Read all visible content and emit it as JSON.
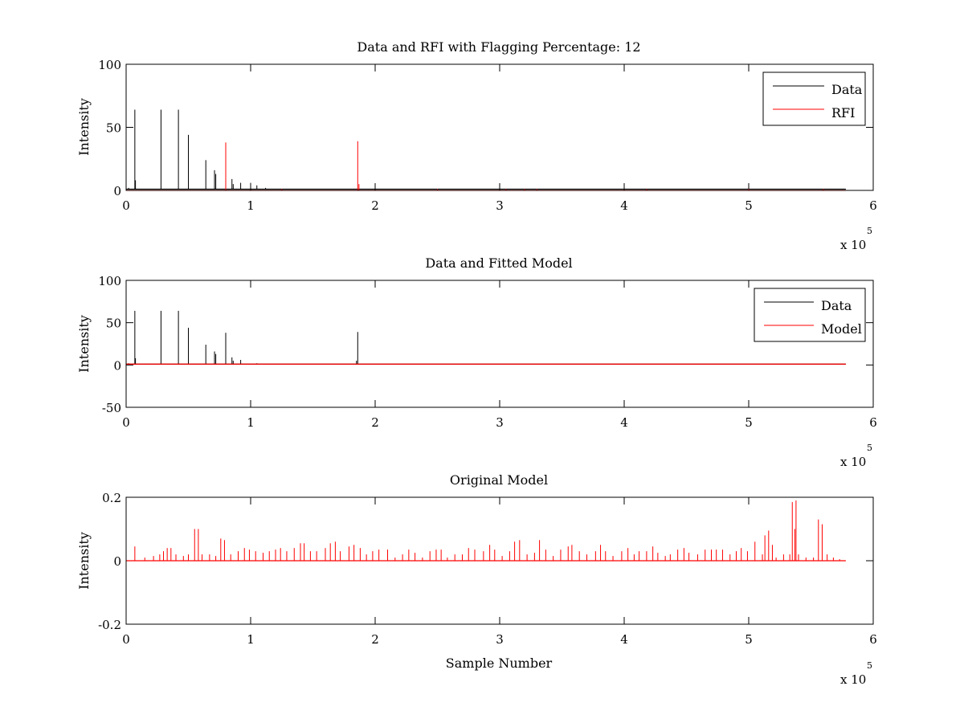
{
  "chart_data": [
    {
      "type": "line",
      "title": "Data and RFI with Flagging Percentage: 12",
      "xlabel": "",
      "ylabel": "Intensity",
      "xlim": [
        0,
        600000
      ],
      "ylim": [
        0,
        100
      ],
      "xticks": [
        0,
        1,
        2,
        3,
        4,
        5,
        6
      ],
      "xtick_labels": [
        "0",
        "1",
        "2",
        "3",
        "4",
        "5",
        "6"
      ],
      "x_multiplier_label": "x 10",
      "x_multiplier_exponent": "5",
      "yticks": [
        0,
        50,
        100
      ],
      "ytick_labels": [
        "0",
        "50",
        "100"
      ],
      "legend_position": "top-right",
      "series": [
        {
          "name": "Data",
          "color": "#000000",
          "spikes": [
            [
              2000,
              2
            ],
            [
              7000,
              64
            ],
            [
              7500,
              8
            ],
            [
              22000,
              1
            ],
            [
              28000,
              64
            ],
            [
              42000,
              64
            ],
            [
              50000,
              44
            ],
            [
              64000,
              24
            ],
            [
              71000,
              16
            ],
            [
              72000,
              13
            ],
            [
              85000,
              9
            ],
            [
              86000,
              5
            ],
            [
              92000,
              6
            ],
            [
              100000,
              6
            ],
            [
              105000,
              4
            ],
            [
              112000,
              2
            ],
            [
              118000,
              1
            ],
            [
              128000,
              1
            ],
            [
              140000,
              1
            ],
            [
              155000,
              1
            ],
            [
              190000,
              1
            ],
            [
              250000,
              1
            ],
            [
              300000,
              1
            ],
            [
              400000,
              1
            ],
            [
              500000,
              1
            ],
            [
              578000,
              1
            ]
          ],
          "baseline": [
            0,
            578000,
            1
          ]
        },
        {
          "name": "RFI",
          "color": "#ff0000",
          "spikes": [
            [
              80000,
              38
            ],
            [
              125000,
              1
            ],
            [
              186000,
              39
            ],
            [
              187000,
              5
            ],
            [
              250000,
              1
            ],
            [
              305000,
              1
            ],
            [
              320000,
              1
            ],
            [
              330000,
              1
            ],
            [
              418000,
              1
            ],
            [
              500000,
              1
            ],
            [
              560000,
              1
            ]
          ],
          "baseline": [
            0,
            578000,
            0
          ]
        }
      ]
    },
    {
      "type": "line",
      "title": "Data and Fitted Model",
      "xlabel": "",
      "ylabel": "Intensity",
      "xlim": [
        0,
        600000
      ],
      "ylim": [
        -50,
        100
      ],
      "xticks": [
        0,
        1,
        2,
        3,
        4,
        5,
        6
      ],
      "xtick_labels": [
        "0",
        "1",
        "2",
        "3",
        "4",
        "5",
        "6"
      ],
      "x_multiplier_label": "x 10",
      "x_multiplier_exponent": "5",
      "yticks": [
        -50,
        0,
        50,
        100
      ],
      "ytick_labels": [
        "-50",
        "0",
        "50",
        "100"
      ],
      "legend_position": "top-right",
      "series": [
        {
          "name": "Data",
          "color": "#000000",
          "spikes": [
            [
              2000,
              2
            ],
            [
              7000,
              64
            ],
            [
              7500,
              8
            ],
            [
              28000,
              64
            ],
            [
              42000,
              64
            ],
            [
              50000,
              44
            ],
            [
              64000,
              24
            ],
            [
              71000,
              16
            ],
            [
              72000,
              13
            ],
            [
              80000,
              38
            ],
            [
              85000,
              9
            ],
            [
              86000,
              5
            ],
            [
              92000,
              6
            ],
            [
              105000,
              2
            ],
            [
              128000,
              1
            ],
            [
              185000,
              5
            ],
            [
              186000,
              39
            ]
          ],
          "baseline": [
            0,
            578000,
            1
          ]
        },
        {
          "name": "Model",
          "color": "#ff0000",
          "spikes": [],
          "baseline": [
            0,
            578000,
            1
          ]
        }
      ]
    },
    {
      "type": "line",
      "title": "Original Model",
      "xlabel": "Sample Number",
      "ylabel": "Intensity",
      "xlim": [
        0,
        600000
      ],
      "ylim": [
        -0.2,
        0.2
      ],
      "xticks": [
        0,
        1,
        2,
        3,
        4,
        5,
        6
      ],
      "xtick_labels": [
        "0",
        "1",
        "2",
        "3",
        "4",
        "5",
        "6"
      ],
      "x_multiplier_label": "x 10",
      "x_multiplier_exponent": "5",
      "yticks": [
        -0.2,
        0,
        0.2
      ],
      "ytick_labels": [
        "-0.2",
        "0",
        "0.2"
      ],
      "legend_position": "none",
      "series": [
        {
          "color": "#ff0000",
          "spikes": [
            [
              7000,
              0.045
            ],
            [
              15000,
              0.01
            ],
            [
              22000,
              0.015
            ],
            [
              27000,
              0.02
            ],
            [
              30000,
              0.03
            ],
            [
              33000,
              0.04
            ],
            [
              36000,
              0.04
            ],
            [
              40000,
              0.02
            ],
            [
              46000,
              0.015
            ],
            [
              50000,
              0.02
            ],
            [
              55000,
              0.1
            ],
            [
              58000,
              0.1
            ],
            [
              61000,
              0.02
            ],
            [
              67000,
              0.02
            ],
            [
              72000,
              0.015
            ],
            [
              76000,
              0.07
            ],
            [
              79000,
              0.065
            ],
            [
              84000,
              0.02
            ],
            [
              90000,
              0.03
            ],
            [
              95000,
              0.04
            ],
            [
              99000,
              0.035
            ],
            [
              104000,
              0.03
            ],
            [
              110000,
              0.025
            ],
            [
              115000,
              0.03
            ],
            [
              120000,
              0.035
            ],
            [
              124000,
              0.04
            ],
            [
              129000,
              0.03
            ],
            [
              135000,
              0.04
            ],
            [
              140000,
              0.055
            ],
            [
              143000,
              0.055
            ],
            [
              148000,
              0.03
            ],
            [
              153000,
              0.03
            ],
            [
              160000,
              0.04
            ],
            [
              164000,
              0.055
            ],
            [
              168000,
              0.06
            ],
            [
              172000,
              0.03
            ],
            [
              179000,
              0.045
            ],
            [
              183000,
              0.05
            ],
            [
              188000,
              0.04
            ],
            [
              193000,
              0.02
            ],
            [
              198000,
              0.03
            ],
            [
              203000,
              0.035
            ],
            [
              210000,
              0.035
            ],
            [
              216000,
              0.01
            ],
            [
              222000,
              0.02
            ],
            [
              227000,
              0.035
            ],
            [
              232000,
              0.025
            ],
            [
              238000,
              0.01
            ],
            [
              244000,
              0.03
            ],
            [
              249000,
              0.035
            ],
            [
              253000,
              0.035
            ],
            [
              258000,
              0.01
            ],
            [
              264000,
              0.02
            ],
            [
              270000,
              0.02
            ],
            [
              275000,
              0.04
            ],
            [
              280000,
              0.035
            ],
            [
              287000,
              0.03
            ],
            [
              292000,
              0.05
            ],
            [
              296000,
              0.035
            ],
            [
              302000,
              0.015
            ],
            [
              308000,
              0.03
            ],
            [
              312000,
              0.06
            ],
            [
              316000,
              0.065
            ],
            [
              322000,
              0.02
            ],
            [
              328000,
              0.025
            ],
            [
              332000,
              0.065
            ],
            [
              337000,
              0.035
            ],
            [
              343000,
              0.015
            ],
            [
              349000,
              0.035
            ],
            [
              355000,
              0.045
            ],
            [
              358000,
              0.05
            ],
            [
              364000,
              0.03
            ],
            [
              370000,
              0.02
            ],
            [
              377000,
              0.03
            ],
            [
              381000,
              0.05
            ],
            [
              385000,
              0.03
            ],
            [
              391000,
              0.015
            ],
            [
              398000,
              0.03
            ],
            [
              403000,
              0.04
            ],
            [
              408000,
              0.02
            ],
            [
              412000,
              0.03
            ],
            [
              418000,
              0.03
            ],
            [
              423000,
              0.045
            ],
            [
              427000,
              0.025
            ],
            [
              433000,
              0.015
            ],
            [
              437000,
              0.02
            ],
            [
              443000,
              0.035
            ],
            [
              448000,
              0.04
            ],
            [
              452000,
              0.025
            ],
            [
              459000,
              0.02
            ],
            [
              465000,
              0.035
            ],
            [
              470000,
              0.035
            ],
            [
              474000,
              0.035
            ],
            [
              479000,
              0.035
            ],
            [
              485000,
              0.02
            ],
            [
              490000,
              0.03
            ],
            [
              494000,
              0.04
            ],
            [
              499000,
              0.03
            ],
            [
              505000,
              0.06
            ],
            [
              511000,
              0.02
            ],
            [
              513000,
              0.08
            ],
            [
              516000,
              0.095
            ],
            [
              519000,
              0.05
            ],
            [
              522000,
              0.01
            ],
            [
              528000,
              0.02
            ],
            [
              533000,
              0.02
            ],
            [
              535000,
              0.185
            ],
            [
              538000,
              0.19
            ],
            [
              537000,
              0.1
            ],
            [
              540000,
              0.02
            ],
            [
              546000,
              0.01
            ],
            [
              552000,
              0.01
            ],
            [
              556000,
              0.13
            ],
            [
              559000,
              0.115
            ],
            [
              563000,
              0.02
            ],
            [
              568000,
              0.01
            ],
            [
              573000,
              0.005
            ]
          ],
          "baseline": [
            0,
            578000,
            0
          ]
        }
      ]
    }
  ]
}
